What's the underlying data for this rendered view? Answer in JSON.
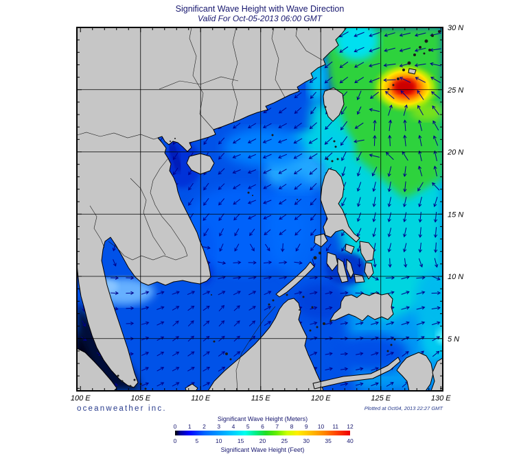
{
  "header": {
    "title": "Significant Wave Height with Wave Direction",
    "subtitle": "Valid For Oct-05-2013 06:00 GMT"
  },
  "footer": {
    "branding": "oceanweather inc.",
    "plotted_at": "Plotted at Oct04, 2013 22:27 GMT"
  },
  "colors": {
    "title_text": "#16166e",
    "branding_text": "#273a8c",
    "axis_text": "#000000",
    "arrow": "#00008b",
    "land": "#c6c6c6",
    "coastline": "#000000",
    "grid": "#000000",
    "storm_peak": "#cc0000"
  },
  "chart_data": {
    "type": "heatmap",
    "title": "Significant Wave Height with Wave Direction",
    "subtitle": "Valid For Oct-05-2013 06:00 GMT",
    "region": {
      "lon_min": 99.7,
      "lon_max": 130.2,
      "lat_min": 0.8,
      "lat_max": 30
    },
    "axes": {
      "lon_ticks": [
        {
          "value": 100,
          "label": "100 E"
        },
        {
          "value": 105,
          "label": "105 E"
        },
        {
          "value": 110,
          "label": "110 E"
        },
        {
          "value": 115,
          "label": "115 E"
        },
        {
          "value": 120,
          "label": "120 E"
        },
        {
          "value": 125,
          "label": "125 E"
        },
        {
          "value": 130,
          "label": "130 E"
        }
      ],
      "lat_ticks": [
        {
          "value": 30,
          "label": "30 N"
        },
        {
          "value": 25,
          "label": "25 N"
        },
        {
          "value": 20,
          "label": "20 N"
        },
        {
          "value": 15,
          "label": "15 N"
        },
        {
          "value": 10,
          "label": "10 N"
        },
        {
          "value": 5,
          "label": "5 N"
        }
      ],
      "lon_gridlines": [
        105,
        110,
        115,
        120,
        125
      ],
      "lat_gridlines": [
        5,
        10,
        15,
        20,
        25
      ],
      "minor_tick_step_deg": 1,
      "grid": true
    },
    "colorbar": {
      "title_meters": "Significant Wave Height (Meters)",
      "title_feet": "Significant Wave Height (Feet)",
      "meters_ticks": [
        0,
        1,
        2,
        3,
        4,
        5,
        6,
        7,
        8,
        9,
        10,
        11,
        12
      ],
      "feet_ticks": [
        0,
        5,
        10,
        15,
        20,
        25,
        30,
        35,
        40
      ],
      "gradient": [
        {
          "pos": 0,
          "color": "#000000"
        },
        {
          "pos": 3,
          "color": "#000099"
        },
        {
          "pos": 8,
          "color": "#0000ff"
        },
        {
          "pos": 17,
          "color": "#0066ff"
        },
        {
          "pos": 25,
          "color": "#0099ff"
        },
        {
          "pos": 33,
          "color": "#00ccff"
        },
        {
          "pos": 40,
          "color": "#00ffee"
        },
        {
          "pos": 46,
          "color": "#00ee88"
        },
        {
          "pos": 52,
          "color": "#22dd22"
        },
        {
          "pos": 58,
          "color": "#66ee00"
        },
        {
          "pos": 64,
          "color": "#ccff00"
        },
        {
          "pos": 70,
          "color": "#ffee00"
        },
        {
          "pos": 78,
          "color": "#ffbb00"
        },
        {
          "pos": 85,
          "color": "#ff8800"
        },
        {
          "pos": 92,
          "color": "#ff4400"
        },
        {
          "pos": 100,
          "color": "#ee0000"
        }
      ]
    },
    "storm": {
      "lon": 125.6,
      "lat": 24.6,
      "max_wave_m": 11
    },
    "wave_field": {
      "comment": "control points: [lon, lat, direction_toward_compass_deg, arrow_len_px]",
      "control_points": [
        [
          128.5,
          29,
          255,
          16
        ],
        [
          124.5,
          28.5,
          250,
          16
        ],
        [
          121,
          27.5,
          230,
          14
        ],
        [
          118.5,
          25.5,
          235,
          12
        ],
        [
          122.5,
          26.5,
          235,
          14
        ],
        [
          124.5,
          26.8,
          255,
          16
        ],
        [
          127.5,
          27.5,
          250,
          16
        ],
        [
          129.5,
          25.5,
          300,
          16
        ],
        [
          125.5,
          26.3,
          265,
          18
        ],
        [
          124,
          25.5,
          245,
          16
        ],
        [
          123.5,
          24.5,
          200,
          14
        ],
        [
          126.8,
          24.8,
          315,
          18
        ],
        [
          128.5,
          24,
          330,
          16
        ],
        [
          127.3,
          21.5,
          355,
          16
        ],
        [
          125.2,
          22.2,
          10,
          16
        ],
        [
          126.4,
          23.4,
          30,
          16
        ],
        [
          123,
          23.3,
          205,
          12
        ],
        [
          119.8,
          23.8,
          215,
          12
        ],
        [
          121.8,
          21.4,
          215,
          16
        ],
        [
          119.5,
          20.5,
          240,
          14
        ],
        [
          124.5,
          21.5,
          5,
          15
        ],
        [
          129,
          19,
          350,
          15
        ],
        [
          129,
          14,
          185,
          15
        ],
        [
          116.5,
          20.5,
          250,
          13
        ],
        [
          113.5,
          19,
          250,
          12
        ],
        [
          110.4,
          19.6,
          210,
          12
        ],
        [
          108.8,
          17.5,
          215,
          12
        ],
        [
          110.4,
          14.5,
          220,
          13
        ],
        [
          112.5,
          12.5,
          215,
          12
        ],
        [
          115,
          15.5,
          250,
          12
        ],
        [
          117,
          14.5,
          235,
          12
        ],
        [
          119.5,
          13,
          220,
          12
        ],
        [
          121,
          13.5,
          215,
          12
        ],
        [
          103,
          9.5,
          90,
          11
        ],
        [
          101.8,
          12,
          200,
          10
        ],
        [
          106,
          8.5,
          70,
          11
        ],
        [
          109,
          6,
          45,
          11
        ],
        [
          112,
          7,
          40,
          11
        ],
        [
          114,
          5.5,
          45,
          11
        ],
        [
          111,
          9,
          65,
          11
        ],
        [
          113,
          11,
          85,
          11
        ],
        [
          116,
          10,
          80,
          11
        ],
        [
          118,
          9.5,
          75,
          11
        ],
        [
          110,
          11.5,
          90,
          11
        ],
        [
          115,
          8,
          60,
          11
        ],
        [
          120.3,
          7.5,
          75,
          10
        ],
        [
          122,
          4,
          85,
          10
        ],
        [
          124.5,
          4.5,
          70,
          11
        ],
        [
          127,
          9,
          70,
          12
        ],
        [
          126.5,
          12.5,
          195,
          13
        ],
        [
          124.5,
          16,
          190,
          14
        ],
        [
          126.8,
          17.8,
          185,
          15
        ],
        [
          122.5,
          18.7,
          195,
          14
        ],
        [
          100.8,
          3.5,
          120,
          8
        ],
        [
          99.9,
          8,
          170,
          9
        ],
        [
          107,
          3,
          60,
          11
        ],
        [
          118,
          3.5,
          60,
          11
        ],
        [
          128,
          2.5,
          45,
          12
        ]
      ]
    }
  }
}
